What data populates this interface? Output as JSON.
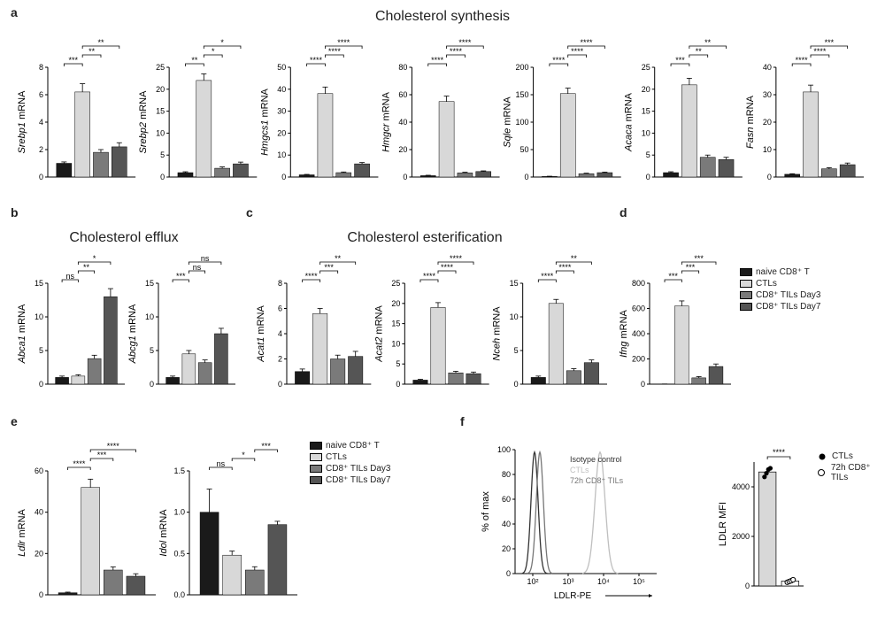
{
  "colors": {
    "naive": "#1a1a1a",
    "ctl": "#d8d8d8",
    "d3": "#7a7a7a",
    "d7": "#555555",
    "axis": "#000000",
    "isotype": "#333333",
    "ctl_line": "#bfbfbf",
    "til_line": "#777777"
  },
  "groups": [
    "naive",
    "ctl",
    "d3",
    "d7"
  ],
  "legend_groups": {
    "naive": "naive CD8⁺ T",
    "ctl": "CTLs",
    "d3": "CD8⁺ TILs Day3",
    "d7": "CD8⁺ TILs Day7"
  },
  "panels": {
    "a": "a",
    "b": "b",
    "c": "c",
    "d": "d",
    "e": "e",
    "f": "f"
  },
  "sections": {
    "a": "Cholesterol synthesis",
    "b": "Cholesterol efflux",
    "c": "Cholesterol esterification"
  },
  "row_a": [
    {
      "gene": "Srebp1",
      "ymax": 8,
      "step": 2,
      "vals": [
        1.0,
        6.2,
        1.8,
        2.2
      ],
      "errs": [
        0.1,
        0.6,
        0.2,
        0.3
      ],
      "sigs": [
        [
          "***",
          0,
          1
        ],
        [
          "**",
          1,
          2
        ],
        [
          "**",
          1,
          3
        ]
      ]
    },
    {
      "gene": "Srebp2",
      "ymax": 25,
      "step": 5,
      "vals": [
        1.0,
        22,
        2.0,
        3.0
      ],
      "errs": [
        0.2,
        1.5,
        0.3,
        0.4
      ],
      "sigs": [
        [
          "**",
          0,
          1
        ],
        [
          "*",
          1,
          2
        ],
        [
          "*",
          1,
          3
        ]
      ]
    },
    {
      "gene": "Hmgcs1",
      "ymax": 50,
      "step": 10,
      "vals": [
        1.0,
        38,
        2.0,
        6.0
      ],
      "errs": [
        0.2,
        3,
        0.3,
        0.6
      ],
      "sigs": [
        [
          "****",
          0,
          1
        ],
        [
          "****",
          1,
          2
        ],
        [
          "****",
          1,
          3
        ]
      ]
    },
    {
      "gene": "Hmgcr",
      "ymax": 80,
      "step": 20,
      "vals": [
        1.0,
        55,
        3.0,
        4.0
      ],
      "errs": [
        0.3,
        4,
        0.5,
        0.5
      ],
      "sigs": [
        [
          "****",
          0,
          1
        ],
        [
          "****",
          1,
          2
        ],
        [
          "****",
          1,
          3
        ]
      ]
    },
    {
      "gene": "Sqle",
      "ymax": 200,
      "step": 50,
      "vals": [
        1.0,
        152,
        6,
        8
      ],
      "errs": [
        0.5,
        10,
        1,
        1
      ],
      "sigs": [
        [
          "****",
          0,
          1
        ],
        [
          "****",
          1,
          2
        ],
        [
          "****",
          1,
          3
        ]
      ]
    },
    {
      "gene": "Acaca",
      "ymax": 25,
      "step": 5,
      "vals": [
        1.0,
        21,
        4.5,
        4.0
      ],
      "errs": [
        0.2,
        1.5,
        0.5,
        0.5
      ],
      "sigs": [
        [
          "***",
          0,
          1
        ],
        [
          "**",
          1,
          2
        ],
        [
          "**",
          1,
          3
        ]
      ]
    },
    {
      "gene": "Fasn",
      "ymax": 40,
      "step": 10,
      "vals": [
        1.0,
        31,
        3,
        4.5
      ],
      "errs": [
        0.2,
        2.5,
        0.4,
        0.6
      ],
      "sigs": [
        [
          "****",
          0,
          1
        ],
        [
          "****",
          1,
          2
        ],
        [
          "***",
          1,
          3
        ]
      ]
    }
  ],
  "row_b": [
    {
      "gene": "Abca1",
      "ymax": 15,
      "step": 5,
      "vals": [
        1.0,
        1.2,
        3.8,
        13
      ],
      "errs": [
        0.2,
        0.2,
        0.5,
        1.2
      ],
      "sigs": [
        [
          "ns",
          0,
          1
        ],
        [
          "**",
          1,
          2
        ],
        [
          "*",
          1,
          3
        ]
      ]
    },
    {
      "gene": "Abcg1",
      "ymax": 15,
      "step": 5,
      "vals": [
        1.0,
        4.5,
        3.2,
        7.5
      ],
      "errs": [
        0.2,
        0.5,
        0.4,
        0.8
      ],
      "sigs": [
        [
          "***",
          0,
          1
        ],
        [
          "ns",
          1,
          2
        ],
        [
          "ns",
          1,
          3
        ]
      ]
    }
  ],
  "row_c": [
    {
      "gene": "Acat1",
      "ymax": 8,
      "step": 2,
      "vals": [
        1.0,
        5.6,
        2.0,
        2.2
      ],
      "errs": [
        0.2,
        0.4,
        0.3,
        0.4
      ],
      "sigs": [
        [
          "****",
          0,
          1
        ],
        [
          "***",
          1,
          2
        ],
        [
          "**",
          1,
          3
        ]
      ]
    },
    {
      "gene": "Acat2",
      "ymax": 25,
      "step": 5,
      "vals": [
        1.0,
        19,
        2.8,
        2.6
      ],
      "errs": [
        0.2,
        1.2,
        0.4,
        0.4
      ],
      "sigs": [
        [
          "****",
          0,
          1
        ],
        [
          "****",
          1,
          2
        ],
        [
          "****",
          1,
          3
        ]
      ]
    },
    {
      "gene": "Nceh",
      "ymax": 15,
      "step": 5,
      "vals": [
        1.0,
        12,
        2.0,
        3.2
      ],
      "errs": [
        0.2,
        0.6,
        0.3,
        0.4
      ],
      "sigs": [
        [
          "****",
          0,
          1
        ],
        [
          "****",
          1,
          2
        ],
        [
          "**",
          1,
          3
        ]
      ]
    }
  ],
  "row_d": [
    {
      "gene": "Ifng",
      "ymax": 800,
      "step": 200,
      "vals": [
        1,
        620,
        50,
        140
      ],
      "errs": [
        0.5,
        40,
        10,
        20
      ],
      "sigs": [
        [
          "***",
          0,
          1
        ],
        [
          "***",
          1,
          2
        ],
        [
          "***",
          1,
          3
        ]
      ]
    }
  ],
  "row_e": [
    {
      "gene": "Ldlr",
      "ymax": 60,
      "step": 20,
      "vals": [
        1.0,
        52,
        12,
        9
      ],
      "errs": [
        0.3,
        4,
        1.5,
        1.2
      ],
      "sigs": [
        [
          "****",
          0,
          1
        ],
        [
          "***",
          1,
          2
        ],
        [
          "****",
          1,
          3
        ]
      ]
    },
    {
      "gene": "Idol",
      "ymax": 1.5,
      "step": 0.5,
      "vals": [
        1.0,
        0.48,
        0.3,
        0.85
      ],
      "errs": [
        0.28,
        0.05,
        0.04,
        0.04
      ],
      "sigs": [
        [
          "ns",
          0,
          1
        ],
        [
          "*",
          1,
          2
        ],
        [
          "***",
          2,
          3
        ]
      ]
    }
  ],
  "panel_f": {
    "histogram": {
      "x_title": "LDLR-PE",
      "y_title": "% of max",
      "x_log_ticks": [
        "10²",
        "10³",
        "10⁴",
        "10⁵"
      ],
      "y_ticks": [
        0,
        20,
        40,
        60,
        80,
        100
      ],
      "series": {
        "isotype": "Isotype control",
        "ctl": "CTLs",
        "til": "72h CD8⁺ TILs"
      }
    },
    "bar": {
      "y_title": "LDLR MFI",
      "ymax": 5000,
      "step": 2000,
      "groups": [
        "CTLs",
        "72h CD8⁺ TILs"
      ],
      "vals": [
        4600,
        200
      ],
      "points_ctl": [
        4400,
        4550,
        4700,
        4750
      ],
      "points_til": [
        150,
        180,
        210,
        250
      ],
      "sig": "****",
      "legend": {
        "ctl": "CTLs",
        "til": "72h CD8⁺ TILs"
      }
    }
  }
}
